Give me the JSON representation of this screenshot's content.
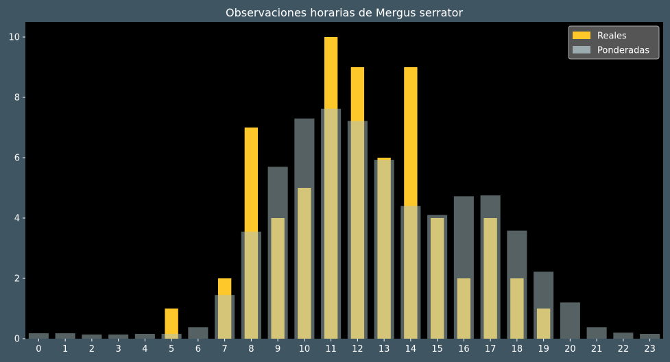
{
  "chart_data": {
    "type": "bar",
    "title": "Observaciones horarias de Mergus serrator",
    "xlabel": "",
    "ylabel": "",
    "categories": [
      "0",
      "1",
      "2",
      "3",
      "4",
      "5",
      "6",
      "7",
      "8",
      "9",
      "10",
      "11",
      "12",
      "13",
      "14",
      "15",
      "16",
      "17",
      "18",
      "19",
      "20",
      "21",
      "22",
      "23"
    ],
    "ylim": [
      0,
      10.5
    ],
    "yticks": [
      0,
      2,
      4,
      6,
      8,
      10
    ],
    "grid": false,
    "legend_position": "top-right",
    "series": [
      {
        "name": "Reales",
        "color": "#ffc82a",
        "values": [
          0,
          0,
          0,
          0,
          0,
          1,
          0,
          2,
          7,
          4,
          5,
          10,
          9,
          6,
          9,
          4,
          2,
          4,
          2,
          1,
          0,
          0,
          0,
          0
        ]
      },
      {
        "name": "Ponderadas",
        "color": "#acc1c5",
        "opacity": 0.5,
        "values": [
          0.18,
          0.18,
          0.14,
          0.14,
          0.16,
          0.16,
          0.38,
          1.45,
          3.55,
          5.7,
          7.3,
          7.62,
          7.22,
          5.93,
          4.4,
          4.1,
          4.72,
          4.75,
          3.58,
          2.22,
          1.2,
          0.38,
          0.2,
          0.16
        ]
      }
    ]
  }
}
